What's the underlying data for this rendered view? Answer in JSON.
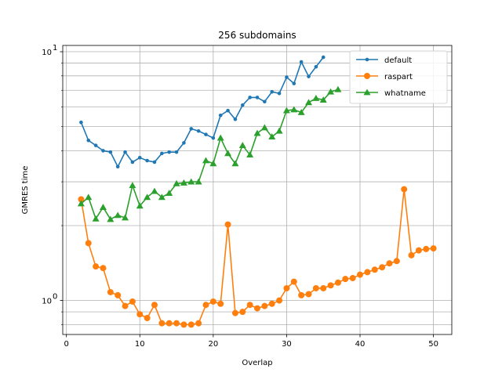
{
  "chart_data": {
    "type": "line",
    "title": "256 subdomains",
    "xlabel": "Overlap",
    "ylabel": "GMRES time",
    "xlim": [
      -0.5,
      52.5
    ],
    "ylim": [
      0.73,
      10.6
    ],
    "yscale": "log",
    "x_ticks": [
      0,
      10,
      20,
      30,
      40,
      50
    ],
    "x_tick_labels": [
      "0",
      "10",
      "20",
      "30",
      "40",
      "50"
    ],
    "y_major_ticks": [
      1,
      10
    ],
    "y_tick_labels": [
      "10",
      "10"
    ],
    "y_tick_exponents": [
      "0",
      "1"
    ],
    "y_minor_ticks": [
      0.8,
      0.9,
      2,
      3,
      4,
      5,
      6,
      7,
      8,
      9
    ],
    "grid": true,
    "legend_position": "upper-right",
    "series": [
      {
        "name": "default",
        "color": "#1f77b4",
        "marker": "circle-small",
        "x": [
          2,
          3,
          4,
          5,
          6,
          7,
          8,
          9,
          10,
          11,
          12,
          13,
          14,
          15,
          16,
          17,
          18,
          19,
          20,
          21,
          22,
          23,
          24,
          25,
          26,
          27,
          28,
          29,
          30,
          31,
          32,
          33,
          34,
          35
        ],
        "y": [
          5.2,
          4.4,
          4.2,
          4.0,
          3.95,
          3.45,
          3.95,
          3.6,
          3.75,
          3.65,
          3.6,
          3.9,
          3.95,
          3.95,
          4.3,
          4.9,
          4.8,
          4.65,
          4.5,
          5.55,
          5.8,
          5.35,
          6.1,
          6.55,
          6.55,
          6.3,
          6.9,
          6.8,
          7.9,
          7.45,
          9.1,
          7.95,
          8.7,
          9.5
        ]
      },
      {
        "name": "raspart",
        "color": "#ff7f0e",
        "marker": "circle",
        "x": [
          2,
          3,
          4,
          5,
          6,
          7,
          8,
          9,
          10,
          11,
          12,
          13,
          14,
          15,
          16,
          17,
          18,
          19,
          20,
          21,
          22,
          23,
          24,
          25,
          26,
          27,
          28,
          29,
          30,
          31,
          32,
          33,
          34,
          35,
          36,
          37,
          38,
          39,
          40,
          41,
          42,
          43,
          44,
          45,
          46,
          47,
          48,
          49,
          50
        ],
        "y": [
          2.55,
          1.7,
          1.37,
          1.35,
          1.08,
          1.05,
          0.95,
          0.99,
          0.88,
          0.85,
          0.96,
          0.81,
          0.81,
          0.81,
          0.8,
          0.8,
          0.81,
          0.96,
          0.99,
          0.97,
          2.02,
          0.89,
          0.9,
          0.96,
          0.93,
          0.95,
          0.97,
          1.0,
          1.12,
          1.19,
          1.05,
          1.06,
          1.12,
          1.12,
          1.15,
          1.18,
          1.22,
          1.23,
          1.27,
          1.3,
          1.33,
          1.36,
          1.41,
          1.44,
          2.8,
          1.52,
          1.59,
          1.61,
          1.62
        ]
      },
      {
        "name": "whatname",
        "color": "#2ca02c",
        "marker": "triangle",
        "x": [
          2,
          3,
          4,
          5,
          6,
          7,
          8,
          9,
          10,
          11,
          12,
          13,
          14,
          15,
          16,
          17,
          18,
          19,
          20,
          21,
          22,
          23,
          24,
          25,
          26,
          27,
          28,
          29,
          30,
          31,
          32,
          33,
          34,
          35,
          36,
          37
        ],
        "y": [
          2.45,
          2.6,
          2.13,
          2.37,
          2.12,
          2.2,
          2.15,
          2.9,
          2.4,
          2.6,
          2.75,
          2.6,
          2.7,
          2.95,
          2.97,
          3.0,
          3.0,
          3.65,
          3.55,
          4.5,
          3.9,
          3.55,
          4.2,
          3.85,
          4.7,
          4.95,
          4.55,
          4.8,
          5.8,
          5.85,
          5.7,
          6.25,
          6.5,
          6.4,
          6.9,
          7.05
        ]
      }
    ]
  }
}
